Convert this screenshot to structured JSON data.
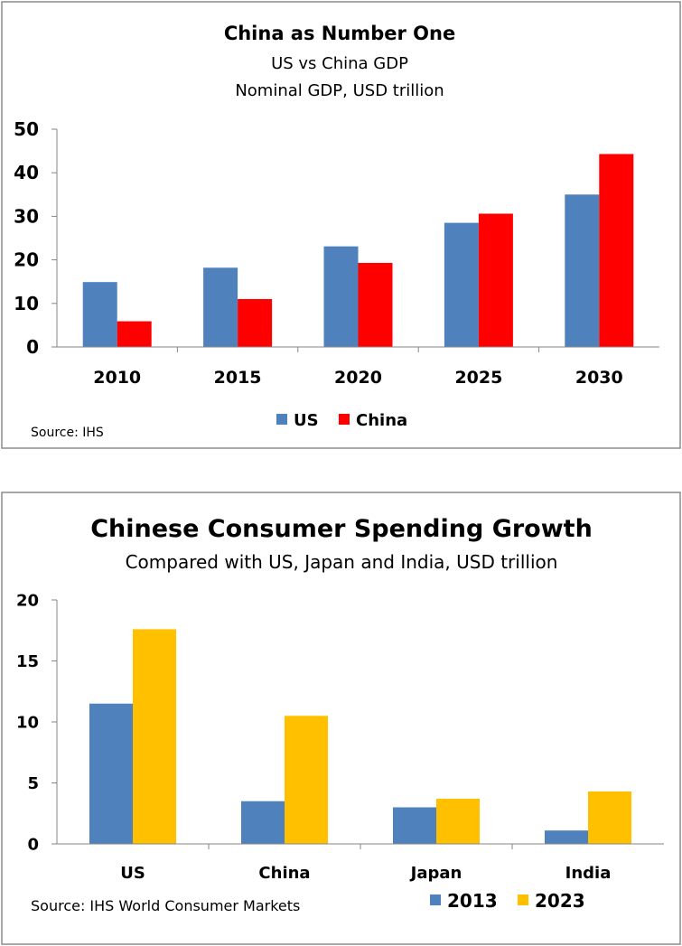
{
  "chart_data": [
    {
      "type": "bar",
      "title": "China as Number One",
      "subtitle": [
        "US vs China GDP",
        "Nominal GDP, USD trillion"
      ],
      "xlabel": "",
      "ylabel": "",
      "categories": [
        "2010",
        "2015",
        "2020",
        "2025",
        "2030"
      ],
      "series": [
        {
          "name": "US",
          "values": [
            14.9,
            18.2,
            23.1,
            28.5,
            35.0
          ],
          "color": "#4f81bd"
        },
        {
          "name": "China",
          "values": [
            5.9,
            11.0,
            19.3,
            30.6,
            44.3
          ],
          "color": "#ff0000"
        }
      ],
      "ylim": [
        0,
        50
      ],
      "yticks": [
        "0",
        "10",
        "20",
        "30",
        "40",
        "50"
      ],
      "legend_position": "bottom",
      "grid": false,
      "source": "Source: IHS"
    },
    {
      "type": "bar",
      "title": "Chinese Consumer Spending Growth",
      "subtitle": [
        "Compared with US, Japan and India, USD trillion"
      ],
      "xlabel": "",
      "ylabel": "",
      "categories": [
        "US",
        "China",
        "Japan",
        "India"
      ],
      "series": [
        {
          "name": "2013",
          "values": [
            11.5,
            3.5,
            3.0,
            1.1
          ],
          "color": "#4f81bd"
        },
        {
          "name": "2023",
          "values": [
            17.6,
            10.5,
            3.7,
            4.3
          ],
          "color": "#ffc000"
        }
      ],
      "ylim": [
        0,
        20
      ],
      "yticks": [
        "0",
        "5",
        "10",
        "15",
        "20"
      ],
      "legend_position": "bottom-right",
      "grid": false,
      "source": "Source: IHS World Consumer  Markets"
    }
  ]
}
